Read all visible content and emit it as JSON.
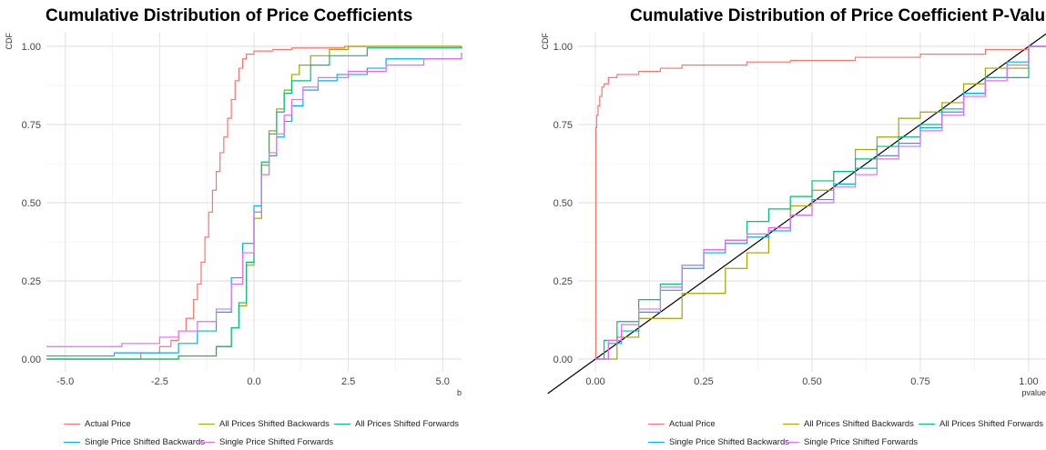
{
  "chart_data": [
    {
      "type": "line",
      "subtype": "ecdf-step",
      "title": "Cumulative Distribution of Price Coefficients",
      "xlabel": "b",
      "ylabel": "CDF",
      "xlim": [
        -5.5,
        5.5
      ],
      "ylim": [
        0,
        1
      ],
      "x_ticks": [
        "-5.0",
        "-2.5",
        "0.0",
        "2.5",
        "5.0"
      ],
      "y_ticks": [
        "0.00",
        "0.25",
        "0.50",
        "0.75",
        "1.00"
      ],
      "grid": true,
      "legend": "bottom",
      "series": [
        {
          "name": "Actual Price",
          "color": "#F8766D",
          "x": [
            -5.5,
            -3.0,
            -2.5,
            -2.2,
            -2.0,
            -1.8,
            -1.6,
            -1.5,
            -1.4,
            -1.3,
            -1.2,
            -1.1,
            -1.0,
            -0.9,
            -0.8,
            -0.7,
            -0.6,
            -0.5,
            -0.4,
            -0.3,
            -0.2,
            0.0,
            0.5,
            1.0,
            2.4,
            5.5
          ],
          "y": [
            0.0,
            0.02,
            0.04,
            0.06,
            0.09,
            0.13,
            0.19,
            0.24,
            0.31,
            0.39,
            0.47,
            0.54,
            0.6,
            0.66,
            0.71,
            0.77,
            0.83,
            0.89,
            0.93,
            0.96,
            0.975,
            0.985,
            0.99,
            0.995,
            1.0,
            1.0
          ]
        },
        {
          "name": "All Prices Shifted Backwards",
          "color": "#A3A500",
          "x": [
            -5.5,
            -2.0,
            -1.0,
            -0.6,
            -0.4,
            -0.2,
            0.0,
            0.2,
            0.4,
            0.6,
            0.8,
            1.0,
            1.2,
            1.5,
            2.0,
            2.5,
            5.5
          ],
          "y": [
            0.0,
            0.01,
            0.04,
            0.1,
            0.17,
            0.3,
            0.45,
            0.62,
            0.73,
            0.8,
            0.86,
            0.91,
            0.94,
            0.97,
            0.99,
            1.0,
            1.0
          ]
        },
        {
          "name": "All Prices Shifted Forwards",
          "color": "#00BF7D",
          "x": [
            -5.5,
            -2.0,
            -1.0,
            -0.6,
            -0.4,
            -0.2,
            0.0,
            0.2,
            0.4,
            0.6,
            0.8,
            1.0,
            1.5,
            2.0,
            3.0,
            5.5
          ],
          "y": [
            0.0,
            0.01,
            0.04,
            0.1,
            0.18,
            0.31,
            0.47,
            0.63,
            0.72,
            0.79,
            0.85,
            0.89,
            0.94,
            0.97,
            0.995,
            1.0
          ]
        },
        {
          "name": "Single Price Shifted Backwards",
          "color": "#00B0F6",
          "x": [
            -5.5,
            -3.7,
            -2.0,
            -1.5,
            -1.0,
            -0.6,
            -0.3,
            0.0,
            0.2,
            0.4,
            0.6,
            0.8,
            1.0,
            1.3,
            1.7,
            2.2,
            3.0,
            3.5,
            5.5
          ],
          "y": [
            0.01,
            0.02,
            0.05,
            0.09,
            0.15,
            0.26,
            0.37,
            0.49,
            0.59,
            0.65,
            0.71,
            0.76,
            0.81,
            0.86,
            0.89,
            0.91,
            0.93,
            0.96,
            0.98
          ]
        },
        {
          "name": "Single Price Shifted Forwards",
          "color": "#E76BF3",
          "x": [
            -5.5,
            -3.5,
            -2.5,
            -2.0,
            -1.5,
            -1.0,
            -0.6,
            -0.3,
            0.0,
            0.2,
            0.4,
            0.6,
            0.8,
            1.0,
            1.3,
            1.7,
            2.5,
            3.5,
            4.5,
            5.5
          ],
          "y": [
            0.04,
            0.05,
            0.07,
            0.09,
            0.12,
            0.16,
            0.24,
            0.34,
            0.47,
            0.59,
            0.66,
            0.72,
            0.78,
            0.83,
            0.87,
            0.9,
            0.92,
            0.94,
            0.96,
            0.975
          ]
        }
      ]
    },
    {
      "type": "line",
      "subtype": "ecdf-step",
      "title": "Cumulative Distribution of Price Coefficient P-Values",
      "xlabel": "pvalue",
      "ylabel": "CDF",
      "xlim": [
        -0.04,
        1.04
      ],
      "ylim": [
        0,
        1
      ],
      "x_ticks": [
        "0.00",
        "0.25",
        "0.50",
        "0.75",
        "1.00"
      ],
      "y_ticks": [
        "0.00",
        "0.25",
        "0.50",
        "0.75",
        "1.00"
      ],
      "grid": true,
      "legend": "bottom",
      "reference_line": {
        "from": [
          0,
          0
        ],
        "to": [
          1,
          1
        ],
        "color": "#000000"
      },
      "series": [
        {
          "name": "Actual Price",
          "color": "#F8766D",
          "x": [
            0.0,
            0.001,
            0.003,
            0.006,
            0.01,
            0.015,
            0.02,
            0.03,
            0.05,
            0.1,
            0.15,
            0.2,
            0.35,
            0.45,
            0.6,
            0.75,
            0.9,
            1.0
          ],
          "y": [
            0.0,
            0.74,
            0.78,
            0.81,
            0.84,
            0.87,
            0.88,
            0.9,
            0.91,
            0.92,
            0.93,
            0.94,
            0.95,
            0.955,
            0.965,
            0.975,
            0.99,
            1.0
          ]
        },
        {
          "name": "All Prices Shifted Backwards",
          "color": "#A3A500",
          "x": [
            0.0,
            0.05,
            0.1,
            0.2,
            0.3,
            0.35,
            0.4,
            0.45,
            0.5,
            0.55,
            0.6,
            0.65,
            0.7,
            0.75,
            0.8,
            0.85,
            0.9,
            1.0
          ],
          "y": [
            0.0,
            0.07,
            0.13,
            0.21,
            0.29,
            0.34,
            0.42,
            0.49,
            0.54,
            0.6,
            0.67,
            0.71,
            0.77,
            0.79,
            0.82,
            0.88,
            0.93,
            1.0
          ]
        },
        {
          "name": "All Prices Shifted Forwards",
          "color": "#00BF7D",
          "x": [
            0.0,
            0.02,
            0.05,
            0.1,
            0.15,
            0.2,
            0.25,
            0.3,
            0.35,
            0.4,
            0.45,
            0.5,
            0.55,
            0.6,
            0.65,
            0.7,
            0.75,
            0.8,
            0.85,
            0.9,
            1.0
          ],
          "y": [
            0.0,
            0.06,
            0.12,
            0.19,
            0.24,
            0.3,
            0.35,
            0.38,
            0.44,
            0.48,
            0.52,
            0.57,
            0.6,
            0.64,
            0.68,
            0.71,
            0.75,
            0.8,
            0.85,
            0.9,
            1.0
          ]
        },
        {
          "name": "Single Price Shifted Backwards",
          "color": "#00B0F6",
          "x": [
            0.0,
            0.03,
            0.06,
            0.1,
            0.15,
            0.2,
            0.25,
            0.3,
            0.35,
            0.4,
            0.45,
            0.5,
            0.55,
            0.6,
            0.65,
            0.7,
            0.75,
            0.8,
            0.85,
            0.9,
            0.95,
            1.0
          ],
          "y": [
            0.0,
            0.05,
            0.09,
            0.15,
            0.22,
            0.29,
            0.34,
            0.37,
            0.39,
            0.41,
            0.46,
            0.51,
            0.56,
            0.61,
            0.65,
            0.69,
            0.74,
            0.79,
            0.85,
            0.9,
            0.95,
            1.0
          ]
        },
        {
          "name": "Single Price Shifted Forwards",
          "color": "#E76BF3",
          "x": [
            0.0,
            0.03,
            0.06,
            0.1,
            0.15,
            0.2,
            0.25,
            0.3,
            0.35,
            0.4,
            0.45,
            0.5,
            0.55,
            0.6,
            0.65,
            0.7,
            0.75,
            0.8,
            0.85,
            0.9,
            0.95,
            1.0
          ],
          "y": [
            0.0,
            0.06,
            0.11,
            0.16,
            0.23,
            0.3,
            0.35,
            0.38,
            0.4,
            0.42,
            0.46,
            0.5,
            0.55,
            0.59,
            0.64,
            0.68,
            0.73,
            0.78,
            0.84,
            0.89,
            0.94,
            1.0
          ]
        }
      ]
    }
  ]
}
